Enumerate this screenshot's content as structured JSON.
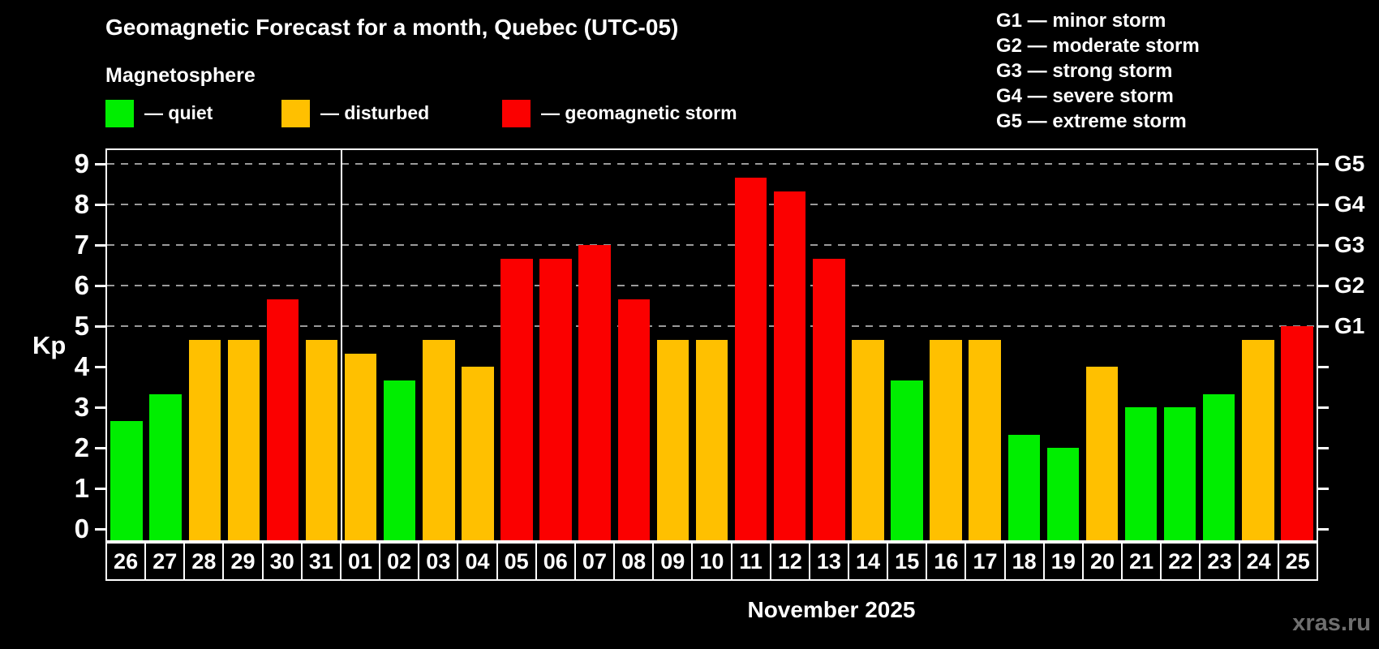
{
  "title": "Geomagnetic Forecast for a month, Quebec (UTC-05)",
  "subtitle": "Magnetosphere",
  "legend": {
    "quiet_label": "— quiet",
    "disturbed_label": "— disturbed",
    "storm_label": "— geomagnetic storm"
  },
  "g_scale_legend": [
    "G1 — minor storm",
    "G2 — moderate storm",
    "G3 — strong storm",
    "G4 — severe storm",
    "G5 — extreme storm"
  ],
  "colors": {
    "quiet": "#00ee00",
    "disturbed": "#ffc000",
    "storm": "#fb0000",
    "background": "#000000",
    "text": "#ffffff",
    "gridline": "#9a9a9a",
    "watermark": "#6f6f6f"
  },
  "watermark": "xras.ru",
  "chart_data": {
    "type": "bar",
    "title": "Geomagnetic Forecast for a month, Quebec (UTC-05)",
    "subtitle": "Magnetosphere",
    "xlabel": "November 2025",
    "ylabel": "Kp",
    "ylim": [
      0,
      9
    ],
    "yticks": [
      0,
      1,
      2,
      3,
      4,
      5,
      6,
      7,
      8,
      9
    ],
    "gridlines_at": [
      5,
      6,
      7,
      8,
      9
    ],
    "grid_style": "dashed horizontal lines only at storm levels G1–G5 (Kp 5–9)",
    "legend_position": "top-left",
    "right_axis_labels": [
      {
        "kp": 5,
        "label": "G1"
      },
      {
        "kp": 6,
        "label": "G2"
      },
      {
        "kp": 7,
        "label": "G3"
      },
      {
        "kp": 8,
        "label": "G4"
      },
      {
        "kp": 9,
        "label": "G5"
      }
    ],
    "month_separator_after_index": 5,
    "categories": [
      "26",
      "27",
      "28",
      "29",
      "30",
      "31",
      "01",
      "02",
      "03",
      "04",
      "05",
      "06",
      "07",
      "08",
      "09",
      "10",
      "11",
      "12",
      "13",
      "14",
      "15",
      "16",
      "17",
      "18",
      "19",
      "20",
      "21",
      "22",
      "23",
      "24",
      "25"
    ],
    "values": [
      2.67,
      3.33,
      4.67,
      4.67,
      5.67,
      4.67,
      4.33,
      3.67,
      4.67,
      4,
      6.67,
      6.67,
      7,
      5.67,
      4.67,
      4.67,
      8.67,
      8.33,
      6.67,
      4.67,
      3.67,
      4.67,
      4.67,
      2.33,
      2,
      4,
      3,
      3,
      3.33,
      4.67,
      5
    ],
    "statuses": [
      "quiet",
      "quiet",
      "disturbed",
      "disturbed",
      "storm",
      "disturbed",
      "disturbed",
      "quiet",
      "disturbed",
      "disturbed",
      "storm",
      "storm",
      "storm",
      "storm",
      "disturbed",
      "disturbed",
      "storm",
      "storm",
      "storm",
      "disturbed",
      "quiet",
      "disturbed",
      "disturbed",
      "quiet",
      "quiet",
      "disturbed",
      "quiet",
      "quiet",
      "quiet",
      "disturbed",
      "storm"
    ]
  }
}
